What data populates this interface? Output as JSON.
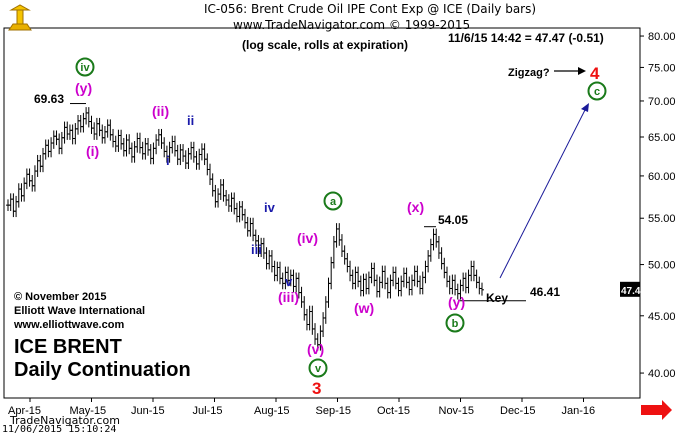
{
  "header": {
    "line1": "IC-056:  Brent Crude Oil IPE Cont Exp @ ICE  (Daily bars)",
    "line2": "www.TradeNavigator.com © 1999-2015",
    "line3": "(log scale, rolls at expiration)",
    "last_quote": "11/6/15 14:42 = 47.47 (-0.51)"
  },
  "footer": {
    "copyright": "© November 2015",
    "company": "Elliott Wave International",
    "website": "www.elliottwave.com",
    "name_line1": "ICE BRENT",
    "name_line2": "Daily Continuation",
    "source": "TradeNavigator.com",
    "timestamp": "11/06/2015  15:10:24"
  },
  "colors": {
    "bars": "#000000",
    "magenta": "#cc00cc",
    "blue": "#1a1aaa",
    "green": "#1a7a1a",
    "red": "#ee1111",
    "arrow": "#1a1a99",
    "price_box": "#000000"
  },
  "chart_data": {
    "type": "ohlc",
    "scale": "log",
    "ylim": [
      38,
      81
    ],
    "y_ticks": [
      "40.00",
      "45.00",
      "50.00",
      "55.00",
      "60.00",
      "65.00",
      "70.00",
      "75.00",
      "80.00"
    ],
    "x_ticks": [
      "Apr-15",
      "May-15",
      "Jun-15",
      "Jul-15",
      "Aug-15",
      "Sep-15",
      "Oct-15",
      "Nov-15",
      "Dec-15",
      "Jan-16"
    ],
    "last_price": "47.47",
    "ohlc_closes": [
      56.5,
      57.2,
      55.8,
      56.9,
      58.4,
      57.6,
      59.1,
      60.2,
      59.4,
      58.8,
      60.6,
      61.9,
      61.2,
      62.8,
      63.9,
      63.1,
      64.2,
      65.1,
      64.7,
      63.5,
      64.9,
      66.3,
      65.4,
      65.9,
      64.8,
      66.1,
      67.2,
      66.4,
      67.5,
      68.3,
      67.1,
      66.2,
      65.4,
      66.8,
      65.9,
      64.9,
      65.7,
      66.6,
      65.3,
      64.4,
      63.8,
      65.2,
      64.1,
      63.2,
      64.6,
      63.5,
      62.4,
      63.7,
      64.8,
      63.6,
      62.8,
      64.1,
      63.3,
      62.2,
      63.5,
      64.6,
      65.3,
      64.2,
      63.1,
      62.4,
      63.6,
      64.4,
      63.2,
      62.1,
      63.3,
      62.5,
      61.6,
      62.8,
      63.6,
      62.4,
      61.5,
      62.7,
      63.4,
      62.1,
      60.8,
      59.6,
      58.2,
      56.9,
      57.8,
      58.9,
      57.6,
      57.1,
      56.4,
      57.3,
      56.1,
      55.2,
      56.3,
      55.4,
      54.5,
      53.6,
      54.4,
      53.1,
      52.5,
      51.4,
      52.2,
      51.2,
      50.1,
      50.9,
      49.8,
      48.9,
      49.7,
      48.6,
      48.1,
      49.2,
      48.4,
      48.9,
      47.8,
      48.6,
      47.2,
      46.3,
      45.1,
      44.2,
      45.4,
      43.8,
      42.9,
      42.4,
      43.6,
      44.8,
      46.3,
      48.1,
      50.2,
      52.4,
      53.8,
      52.6,
      51.4,
      50.6,
      49.8,
      48.9,
      48.1,
      49.2,
      48.3,
      47.4,
      48.5,
      47.6,
      48.7,
      49.6,
      48.4,
      47.3,
      48.2,
      49.3,
      48.1,
      47.2,
      48.4,
      49.2,
      48.1,
      47.4,
      48.3,
      49.1,
      48.2,
      47.5,
      48.4,
      49.3,
      48.3,
      47.6,
      48.7,
      49.8,
      50.9,
      52.1,
      53.2,
      52.4,
      51.2,
      50.1,
      49.2,
      48.3,
      47.6,
      48.4,
      47.5,
      47.1,
      47.9,
      48.6,
      47.7,
      48.9,
      49.8,
      48.9,
      48.2,
      47.6,
      47.47
    ],
    "labels": [
      {
        "text": "69.63",
        "color": "black"
      },
      {
        "text": "54.05",
        "color": "black"
      },
      {
        "text": "46.41",
        "color": "black"
      },
      {
        "text": "Key",
        "color": "black"
      },
      {
        "text": "Zigzag?",
        "color": "black"
      },
      {
        "text": "(y)",
        "color": "magenta"
      },
      {
        "text": "(i)",
        "color": "magenta"
      },
      {
        "text": "(ii)",
        "color": "magenta"
      },
      {
        "text": "(iv)",
        "color": "magenta"
      },
      {
        "text": "(iii)",
        "color": "magenta"
      },
      {
        "text": "(v)",
        "color": "magenta"
      },
      {
        "text": "(w)",
        "color": "magenta"
      },
      {
        "text": "(x)",
        "color": "magenta"
      },
      {
        "text": "(y)",
        "color": "magenta"
      },
      {
        "text": "i",
        "color": "blue"
      },
      {
        "text": "ii",
        "color": "blue"
      },
      {
        "text": "iii",
        "color": "blue"
      },
      {
        "text": "iv",
        "color": "blue"
      },
      {
        "text": "v",
        "color": "blue"
      },
      {
        "text": "3",
        "color": "red"
      },
      {
        "text": "4",
        "color": "red"
      }
    ],
    "circled_labels": [
      "iv",
      "a",
      "v",
      "b",
      "c"
    ]
  }
}
